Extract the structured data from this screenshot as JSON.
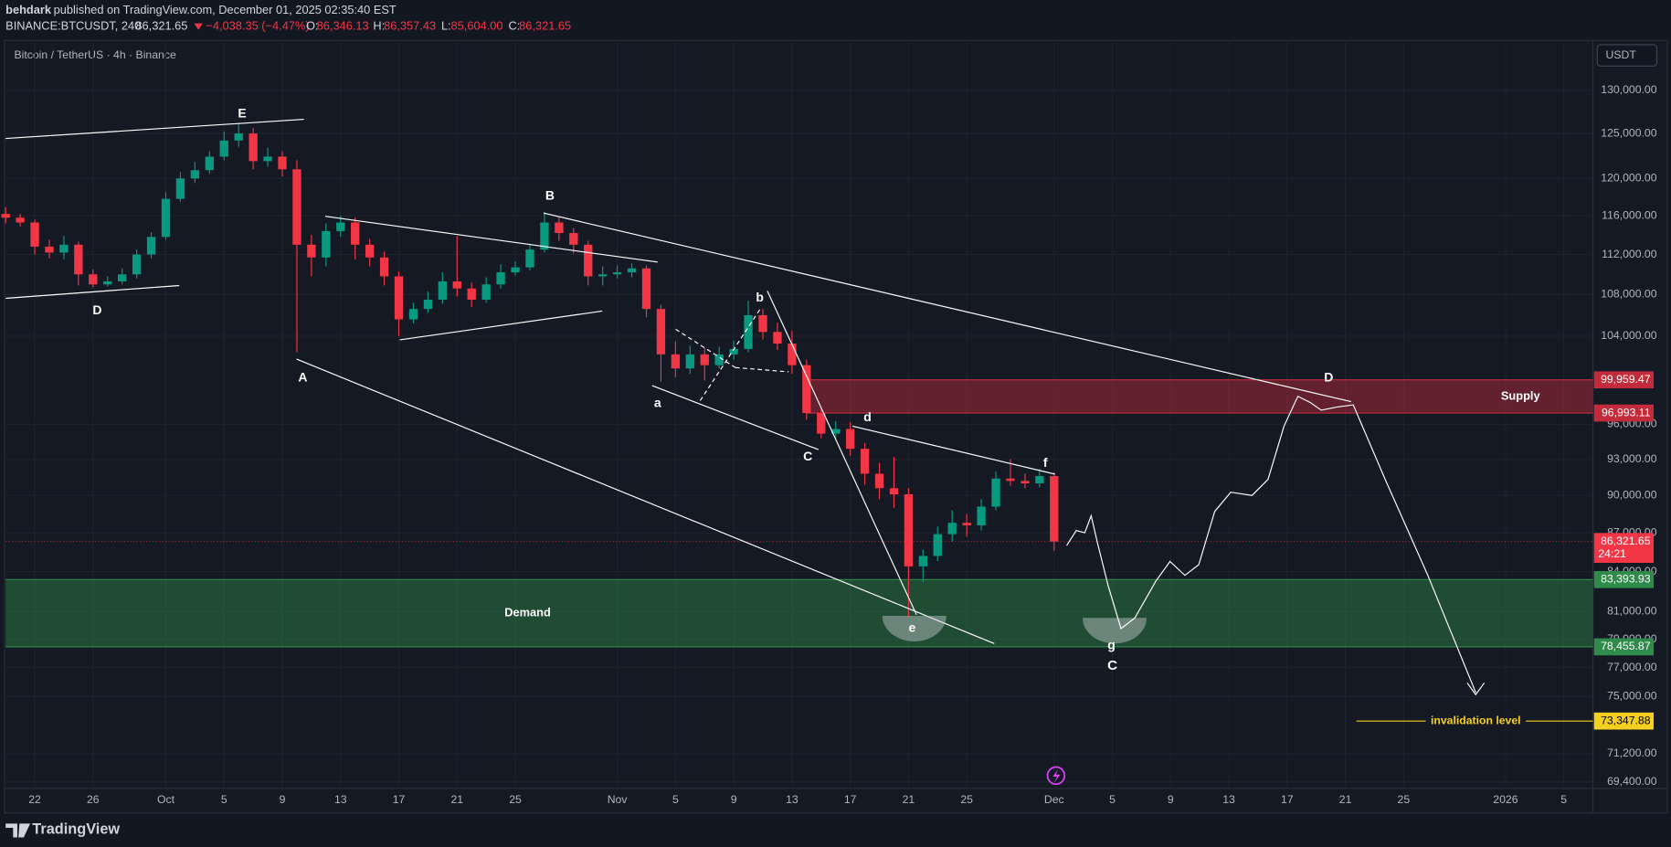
{
  "header": {
    "publisher": "behdark",
    "published": "published on TradingView.com, December 01, 2025 02:35:40 EST",
    "symbol": "BINANCE:BTCUSDT, 240",
    "last": "86,321.65",
    "change": "−4,038.35 (−4.47%)",
    "ohlc": [
      {
        "label": "O:",
        "value": "86,346.13"
      },
      {
        "label": "H:",
        "value": "86,357.43"
      },
      {
        "label": "L:",
        "value": "85,604.00"
      },
      {
        "label": "C:",
        "value": "86,321.65"
      }
    ]
  },
  "footer": {
    "brand": "TradingView"
  },
  "chart_data": {
    "type": "candlestick",
    "title": "Bitcoin / TetherUS · 4h · Binance",
    "currency": "USDT",
    "log_scale": true,
    "grid": true,
    "up_color": "#089981",
    "down_color": "#f23645",
    "ylim": [
      69000,
      136000
    ],
    "yticks": [
      {
        "value": 130000,
        "label": "130,000.00"
      },
      {
        "value": 125000,
        "label": "125,000.00"
      },
      {
        "value": 120000,
        "label": "120,000.00"
      },
      {
        "value": 116000,
        "label": "116,000.00"
      },
      {
        "value": 112000,
        "label": "112,000.00"
      },
      {
        "value": 108000,
        "label": "108,000.00"
      },
      {
        "value": 104000,
        "label": "104,000.00"
      },
      {
        "value": 96000,
        "label": "96,000.00"
      },
      {
        "value": 93000,
        "label": "93,000.00"
      },
      {
        "value": 90000,
        "label": "90,000.00"
      },
      {
        "value": 87000,
        "label": "87,000.00"
      },
      {
        "value": 84000,
        "label": "84,000.00"
      },
      {
        "value": 81000,
        "label": "81,000.00"
      },
      {
        "value": 79000,
        "label": "79,000.00"
      },
      {
        "value": 77000,
        "label": "77,000.00"
      },
      {
        "value": 75000,
        "label": "75,000.00"
      },
      {
        "value": 71200,
        "label": "71,200.00"
      },
      {
        "value": 69400,
        "label": "69,400.00"
      }
    ],
    "xlim": [
      "2025-09-20",
      "2026-01-07"
    ],
    "xticks": [
      {
        "value": "2025-09-22",
        "label": "22"
      },
      {
        "value": "2025-09-26",
        "label": "26"
      },
      {
        "value": "2025-10-01",
        "label": "Oct"
      },
      {
        "value": "2025-10-05",
        "label": "5"
      },
      {
        "value": "2025-10-09",
        "label": "9"
      },
      {
        "value": "2025-10-13",
        "label": "13"
      },
      {
        "value": "2025-10-17",
        "label": "17"
      },
      {
        "value": "2025-10-21",
        "label": "21"
      },
      {
        "value": "2025-10-25",
        "label": "25"
      },
      {
        "value": "2025-11-01",
        "label": "Nov"
      },
      {
        "value": "2025-11-05",
        "label": "5"
      },
      {
        "value": "2025-11-09",
        "label": "9"
      },
      {
        "value": "2025-11-13",
        "label": "13"
      },
      {
        "value": "2025-11-17",
        "label": "17"
      },
      {
        "value": "2025-11-21",
        "label": "21"
      },
      {
        "value": "2025-11-25",
        "label": "25"
      },
      {
        "value": "2025-12-01",
        "label": "Dec"
      },
      {
        "value": "2025-12-05",
        "label": "5"
      },
      {
        "value": "2025-12-09",
        "label": "9"
      },
      {
        "value": "2025-12-13",
        "label": "13"
      },
      {
        "value": "2025-12-17",
        "label": "17"
      },
      {
        "value": "2025-12-21",
        "label": "21"
      },
      {
        "value": "2025-12-25",
        "label": "25"
      },
      {
        "value": "2026-01-01",
        "label": "2026"
      },
      {
        "value": "2026-01-05",
        "label": "5"
      }
    ],
    "x": [
      "2025-09-20",
      "2025-09-21",
      "2025-09-22",
      "2025-09-23",
      "2025-09-24",
      "2025-09-25",
      "2025-09-26",
      "2025-09-27",
      "2025-09-28",
      "2025-09-29",
      "2025-09-30",
      "2025-10-01",
      "2025-10-02",
      "2025-10-03",
      "2025-10-04",
      "2025-10-05",
      "2025-10-06",
      "2025-10-07",
      "2025-10-08",
      "2025-10-09",
      "2025-10-10",
      "2025-10-11",
      "2025-10-12",
      "2025-10-13",
      "2025-10-14",
      "2025-10-15",
      "2025-10-16",
      "2025-10-17",
      "2025-10-18",
      "2025-10-19",
      "2025-10-20",
      "2025-10-21",
      "2025-10-22",
      "2025-10-23",
      "2025-10-24",
      "2025-10-25",
      "2025-10-26",
      "2025-10-27",
      "2025-10-28",
      "2025-10-29",
      "2025-10-30",
      "2025-10-31",
      "2025-11-01",
      "2025-11-02",
      "2025-11-03",
      "2025-11-04",
      "2025-11-05",
      "2025-11-06",
      "2025-11-07",
      "2025-11-08",
      "2025-11-09",
      "2025-11-10",
      "2025-11-11",
      "2025-11-12",
      "2025-11-13",
      "2025-11-14",
      "2025-11-15",
      "2025-11-16",
      "2025-11-17",
      "2025-11-18",
      "2025-11-19",
      "2025-11-20",
      "2025-11-21",
      "2025-11-22",
      "2025-11-23",
      "2025-11-24",
      "2025-11-25",
      "2025-11-26",
      "2025-11-27",
      "2025-11-28",
      "2025-11-29",
      "2025-11-30",
      "2025-12-01"
    ],
    "open": [
      116200,
      115800,
      115300,
      112800,
      112200,
      113000,
      110000,
      109000,
      109300,
      110000,
      112000,
      113800,
      117800,
      120000,
      120900,
      122400,
      124200,
      125000,
      121900,
      122400,
      121000,
      113000,
      111700,
      114400,
      115300,
      113000,
      111700,
      109800,
      105600,
      106600,
      107500,
      109300,
      108600,
      107500,
      109000,
      110200,
      110700,
      112500,
      115300,
      114200,
      113000,
      109800,
      110000,
      110200,
      110600,
      106600,
      102300,
      101000,
      102300,
      101300,
      102300,
      102800,
      106000,
      104400,
      103300,
      101300,
      97000,
      95200,
      95600,
      93900,
      91800,
      90600,
      90100,
      84400,
      85200,
      86900,
      87800,
      87600,
      89100,
      91400,
      91200,
      91000,
      91600
    ],
    "high": [
      116900,
      116200,
      115600,
      113500,
      113900,
      113300,
      110500,
      109800,
      110600,
      112500,
      114300,
      118500,
      120700,
      121800,
      123000,
      125200,
      126200,
      125600,
      123400,
      123000,
      122000,
      114000,
      115200,
      116000,
      115800,
      113600,
      112300,
      110300,
      107200,
      108300,
      110200,
      113900,
      109200,
      109700,
      111000,
      111300,
      113100,
      116400,
      115900,
      114700,
      113400,
      110800,
      110900,
      111100,
      110900,
      107000,
      103500,
      103100,
      102900,
      103000,
      103600,
      107400,
      106600,
      105300,
      104500,
      101800,
      97500,
      96300,
      96200,
      94400,
      92700,
      93200,
      90600,
      85700,
      87500,
      88800,
      88500,
      89700,
      92000,
      93000,
      91800,
      92200,
      91900
    ],
    "low": [
      115200,
      114900,
      112000,
      111600,
      111500,
      108900,
      108700,
      108800,
      109000,
      109600,
      111600,
      113500,
      117500,
      119500,
      120500,
      122000,
      123500,
      121000,
      121300,
      120200,
      102500,
      109800,
      110800,
      113800,
      111500,
      110800,
      108900,
      104000,
      105200,
      106200,
      107100,
      107800,
      106800,
      107200,
      108600,
      109900,
      110400,
      112200,
      113400,
      112100,
      108900,
      108900,
      109600,
      109700,
      105800,
      99800,
      100200,
      100500,
      99900,
      101000,
      101800,
      102500,
      103700,
      102700,
      100500,
      96400,
      94800,
      94700,
      93300,
      90900,
      89700,
      89000,
      80600,
      83200,
      84800,
      86300,
      86700,
      87200,
      88800,
      90800,
      90600,
      90700,
      85604
    ],
    "close": [
      115800,
      115300,
      112800,
      112200,
      113000,
      110000,
      109000,
      109300,
      110000,
      112000,
      113800,
      117800,
      120000,
      120900,
      122400,
      124200,
      125000,
      121900,
      122400,
      121000,
      113000,
      111700,
      114400,
      115300,
      113000,
      111700,
      109800,
      105600,
      106600,
      107500,
      109300,
      108600,
      107500,
      109000,
      110200,
      110700,
      112500,
      115300,
      114200,
      113000,
      109800,
      110000,
      110200,
      110600,
      106600,
      102300,
      101000,
      102300,
      101300,
      102300,
      102800,
      106000,
      104400,
      103300,
      101300,
      97000,
      95200,
      95600,
      93900,
      91800,
      90600,
      90100,
      84400,
      85200,
      86900,
      87800,
      87600,
      89100,
      91400,
      91200,
      91000,
      91600,
      86321.65
    ],
    "last_price": {
      "value": 86321.65,
      "label": "86,321.65",
      "countdown": "24:21"
    },
    "zones": [
      {
        "name": "Supply",
        "top": {
          "value": 99959.47,
          "label": "99,959.47"
        },
        "bottom": {
          "value": 96993.11,
          "label": "96,993.11"
        },
        "color": "#c42b3a"
      },
      {
        "name": "Demand",
        "top": {
          "value": 83393.93,
          "label": "83,393.93"
        },
        "bottom": {
          "value": 78455.87,
          "label": "78,455.87"
        },
        "color": "#2e8b4a"
      }
    ],
    "invalidation": {
      "value": 73347.88,
      "label": "73,347.88",
      "text": "invalidation level",
      "color": "#f5d020"
    },
    "annotations": [
      "E",
      "D",
      "A",
      "B",
      "a",
      "b",
      "C",
      "d",
      "f",
      "e",
      "g",
      "C",
      "D"
    ]
  }
}
